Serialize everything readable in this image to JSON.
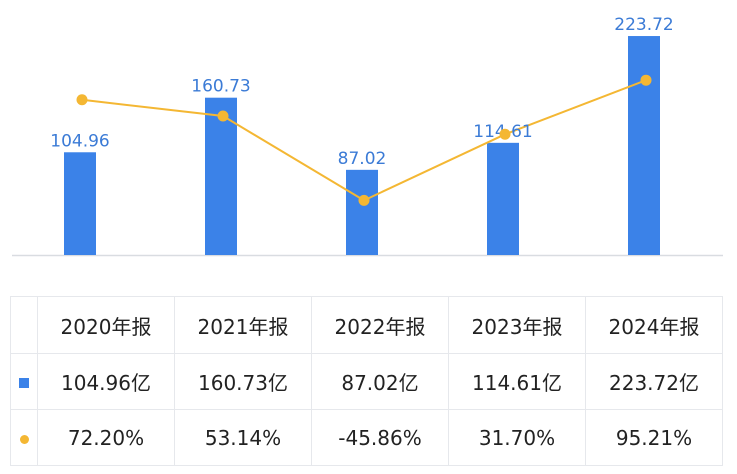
{
  "colors": {
    "bar": "#3b82e8",
    "line": "#f4b733",
    "bar_label": "#3b7bd6",
    "positive": "#e04a4a",
    "negative": "#28a55f",
    "axis": "#d9dce1"
  },
  "chart_data": {
    "type": "bar",
    "categories": [
      "2020年报",
      "2021年报",
      "2022年报",
      "2023年报",
      "2024年报"
    ],
    "series": [
      {
        "type": "bar",
        "values": [
          104.96,
          160.73,
          87.02,
          114.61,
          223.72
        ]
      },
      {
        "type": "line",
        "values": [
          72.2,
          53.14,
          -45.86,
          31.7,
          95.21
        ]
      }
    ],
    "bar_labels": [
      "104.96",
      "160.73",
      "87.02",
      "114.61",
      "223.72"
    ],
    "ylim": [
      0,
      235
    ],
    "line_ylim": [
      -110,
      160
    ],
    "grid": false
  },
  "table": {
    "headers": [
      "2020年报",
      "2021年报",
      "2022年报",
      "2023年报",
      "2024年报"
    ],
    "bar_row": [
      "104.96亿",
      "160.73亿",
      "87.02亿",
      "114.61亿",
      "223.72亿"
    ],
    "line_row": [
      "72.20%",
      "53.14%",
      "-45.86%",
      "31.70%",
      "95.21%"
    ]
  }
}
